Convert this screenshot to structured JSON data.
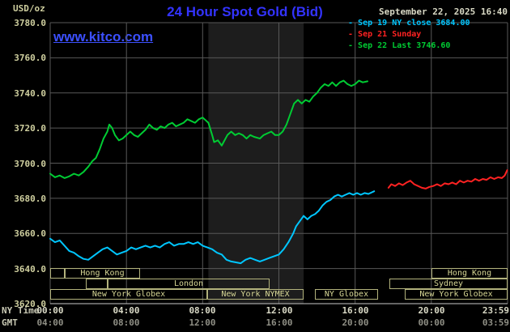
{
  "header": {
    "title": "24 Hour Spot Gold (Bid)",
    "datetime": "September 22, 2025 16:40",
    "units": "USD/oz",
    "watermark": "www.kitco.com"
  },
  "legend": [
    {
      "label": "Sep 19 NY close 3684.00",
      "color": "#00c6ff"
    },
    {
      "label": "Sep 21 Sunday",
      "color": "#ff2222"
    },
    {
      "label": "Sep 22 Last 3746.60",
      "color": "#00cc33"
    }
  ],
  "x_axis_names": {
    "ny": "NY Time",
    "gmt": "GMT"
  },
  "colors": {
    "title_blue": "#3333ff",
    "watermark_blue": "#3c50ff",
    "grid": "#585858",
    "band": "#1d1d1d",
    "axis_line": "#c8c8c8",
    "tick_tan": "#cfcf9f",
    "session_tan": "#b2b27c"
  },
  "chart_data": {
    "type": "line",
    "title": "24 Hour Spot Gold (Bid)",
    "ylabel": "USD/oz",
    "y_axis": {
      "min": 3620,
      "max": 3780,
      "step": 20,
      "tick_labels": [
        "3780.0",
        "3760.0",
        "3740.0",
        "3720.0",
        "3700.0",
        "3680.0",
        "3660.0",
        "3640.0",
        "3620.0"
      ]
    },
    "x_axis": {
      "min_hour": 0,
      "max_hour": 24,
      "grid_hours": [
        0,
        4,
        8,
        12,
        16,
        20,
        24
      ],
      "ticks": [
        {
          "hour": 0,
          "ny": "00:00",
          "gmt": "04:00"
        },
        {
          "hour": 4,
          "ny": "04:00",
          "gmt": "08:00"
        },
        {
          "hour": 8,
          "ny": "08:00",
          "gmt": "12:00"
        },
        {
          "hour": 12,
          "ny": "12:00",
          "gmt": "16:00"
        },
        {
          "hour": 16,
          "ny": "16:00",
          "gmt": "20:00"
        },
        {
          "hour": 20,
          "ny": "20:00",
          "gmt": "00:00"
        },
        {
          "hour": 23.983,
          "ny": "23:59",
          "gmt": "03:59"
        }
      ]
    },
    "highlight_band_hours": [
      8.3,
      13.3
    ],
    "series": [
      {
        "id": "sep19",
        "name": "Sep 19 NY close",
        "close": 3684.0,
        "color": "#00c6ff",
        "points": [
          [
            0,
            3657
          ],
          [
            0.25,
            3655
          ],
          [
            0.5,
            3656
          ],
          [
            0.75,
            3653
          ],
          [
            1,
            3650
          ],
          [
            1.25,
            3649
          ],
          [
            1.5,
            3647
          ],
          [
            1.75,
            3645.5
          ],
          [
            2,
            3645
          ],
          [
            2.25,
            3647
          ],
          [
            2.5,
            3649
          ],
          [
            2.75,
            3651
          ],
          [
            3,
            3652
          ],
          [
            3.25,
            3650
          ],
          [
            3.5,
            3648
          ],
          [
            3.75,
            3649
          ],
          [
            4,
            3650
          ],
          [
            4.25,
            3652
          ],
          [
            4.5,
            3651
          ],
          [
            4.75,
            3652
          ],
          [
            5,
            3653
          ],
          [
            5.25,
            3652
          ],
          [
            5.5,
            3653
          ],
          [
            5.75,
            3652
          ],
          [
            6,
            3654
          ],
          [
            6.25,
            3655
          ],
          [
            6.5,
            3653
          ],
          [
            6.75,
            3654
          ],
          [
            7,
            3654
          ],
          [
            7.25,
            3655
          ],
          [
            7.5,
            3654
          ],
          [
            7.75,
            3655
          ],
          [
            8,
            3653
          ],
          [
            8.25,
            3652
          ],
          [
            8.5,
            3651
          ],
          [
            8.75,
            3649
          ],
          [
            9,
            3648
          ],
          [
            9.25,
            3645
          ],
          [
            9.5,
            3644
          ],
          [
            9.75,
            3643.5
          ],
          [
            10,
            3643
          ],
          [
            10.25,
            3645
          ],
          [
            10.5,
            3646
          ],
          [
            10.75,
            3645
          ],
          [
            11,
            3644
          ],
          [
            11.25,
            3645
          ],
          [
            11.5,
            3646
          ],
          [
            11.75,
            3647
          ],
          [
            12,
            3648
          ],
          [
            12.25,
            3651
          ],
          [
            12.5,
            3655
          ],
          [
            12.75,
            3660
          ],
          [
            12.9,
            3664
          ],
          [
            13.1,
            3667
          ],
          [
            13.3,
            3670
          ],
          [
            13.5,
            3668
          ],
          [
            13.7,
            3670
          ],
          [
            13.9,
            3671
          ],
          [
            14.1,
            3673
          ],
          [
            14.3,
            3676
          ],
          [
            14.5,
            3678
          ],
          [
            14.7,
            3679
          ],
          [
            14.9,
            3681
          ],
          [
            15.1,
            3682
          ],
          [
            15.3,
            3681
          ],
          [
            15.5,
            3682
          ],
          [
            15.7,
            3683
          ],
          [
            15.9,
            3682
          ],
          [
            16.1,
            3683
          ],
          [
            16.3,
            3682
          ],
          [
            16.5,
            3683
          ],
          [
            16.7,
            3682.5
          ],
          [
            17,
            3684
          ]
        ]
      },
      {
        "id": "sep21",
        "name": "Sep 21 Sunday",
        "color": "#ff2222",
        "points": [
          [
            17.75,
            3686
          ],
          [
            17.9,
            3688
          ],
          [
            18.1,
            3687
          ],
          [
            18.3,
            3688.5
          ],
          [
            18.5,
            3687.5
          ],
          [
            18.7,
            3689
          ],
          [
            18.9,
            3690
          ],
          [
            19.1,
            3688
          ],
          [
            19.3,
            3687
          ],
          [
            19.5,
            3686
          ],
          [
            19.7,
            3685.5
          ],
          [
            19.9,
            3686.5
          ],
          [
            20.1,
            3687
          ],
          [
            20.3,
            3688
          ],
          [
            20.5,
            3687
          ],
          [
            20.7,
            3688.5
          ],
          [
            20.9,
            3688
          ],
          [
            21.1,
            3689
          ],
          [
            21.3,
            3688
          ],
          [
            21.5,
            3690
          ],
          [
            21.7,
            3689
          ],
          [
            21.9,
            3690
          ],
          [
            22.1,
            3689.5
          ],
          [
            22.3,
            3691
          ],
          [
            22.5,
            3690
          ],
          [
            22.7,
            3691
          ],
          [
            22.9,
            3690.5
          ],
          [
            23.1,
            3692
          ],
          [
            23.3,
            3691
          ],
          [
            23.5,
            3692
          ],
          [
            23.7,
            3691.5
          ],
          [
            23.85,
            3693
          ],
          [
            23.98,
            3696
          ]
        ]
      },
      {
        "id": "sep22",
        "name": "Sep 22 Last",
        "last": 3746.6,
        "color": "#00cc33",
        "points": [
          [
            0,
            3694
          ],
          [
            0.25,
            3692
          ],
          [
            0.5,
            3693
          ],
          [
            0.75,
            3691.5
          ],
          [
            1,
            3692.5
          ],
          [
            1.25,
            3694
          ],
          [
            1.5,
            3693
          ],
          [
            1.75,
            3695
          ],
          [
            2,
            3698
          ],
          [
            2.2,
            3701
          ],
          [
            2.4,
            3703
          ],
          [
            2.6,
            3708
          ],
          [
            2.8,
            3714
          ],
          [
            3,
            3718
          ],
          [
            3.1,
            3722
          ],
          [
            3.25,
            3720
          ],
          [
            3.4,
            3716
          ],
          [
            3.6,
            3713
          ],
          [
            3.8,
            3714
          ],
          [
            4,
            3716
          ],
          [
            4.2,
            3718
          ],
          [
            4.4,
            3716
          ],
          [
            4.6,
            3715
          ],
          [
            4.8,
            3717
          ],
          [
            5,
            3719
          ],
          [
            5.2,
            3722
          ],
          [
            5.4,
            3720
          ],
          [
            5.6,
            3719
          ],
          [
            5.8,
            3721
          ],
          [
            6,
            3720
          ],
          [
            6.2,
            3722
          ],
          [
            6.4,
            3723
          ],
          [
            6.6,
            3721
          ],
          [
            6.8,
            3722
          ],
          [
            7,
            3723
          ],
          [
            7.2,
            3725
          ],
          [
            7.4,
            3724
          ],
          [
            7.6,
            3723
          ],
          [
            7.8,
            3725
          ],
          [
            8,
            3726
          ],
          [
            8.1,
            3725
          ],
          [
            8.3,
            3723
          ],
          [
            8.5,
            3716
          ],
          [
            8.6,
            3712
          ],
          [
            8.8,
            3713
          ],
          [
            9,
            3710
          ],
          [
            9.1,
            3712
          ],
          [
            9.3,
            3716
          ],
          [
            9.5,
            3718
          ],
          [
            9.7,
            3716
          ],
          [
            9.9,
            3717
          ],
          [
            10.1,
            3716
          ],
          [
            10.3,
            3714
          ],
          [
            10.5,
            3716
          ],
          [
            10.7,
            3715
          ],
          [
            11,
            3714
          ],
          [
            11.2,
            3716
          ],
          [
            11.4,
            3717
          ],
          [
            11.6,
            3718
          ],
          [
            11.8,
            3716
          ],
          [
            12,
            3716
          ],
          [
            12.2,
            3718
          ],
          [
            12.4,
            3722
          ],
          [
            12.6,
            3728
          ],
          [
            12.8,
            3734
          ],
          [
            13,
            3736
          ],
          [
            13.2,
            3734
          ],
          [
            13.4,
            3736
          ],
          [
            13.6,
            3735
          ],
          [
            13.8,
            3738
          ],
          [
            14,
            3740
          ],
          [
            14.2,
            3743
          ],
          [
            14.4,
            3745
          ],
          [
            14.6,
            3744
          ],
          [
            14.8,
            3746
          ],
          [
            15,
            3744
          ],
          [
            15.2,
            3746
          ],
          [
            15.4,
            3747
          ],
          [
            15.6,
            3745
          ],
          [
            15.8,
            3744
          ],
          [
            16,
            3745
          ],
          [
            16.2,
            3747
          ],
          [
            16.4,
            3746
          ],
          [
            16.65,
            3746.6
          ]
        ]
      }
    ]
  },
  "sessions": {
    "rows": [
      {
        "boxes": [
          {
            "start": 0,
            "end": 0.77,
            "label": ""
          },
          {
            "start": 0.77,
            "end": 4.7,
            "label": "Hong Kong"
          },
          {
            "start": 20,
            "end": 24,
            "label": "Hong Kong"
          }
        ]
      },
      {
        "boxes": [
          {
            "start": 1.85,
            "end": 3.0,
            "label": ""
          },
          {
            "start": 3.0,
            "end": 11.5,
            "label": "London"
          },
          {
            "start": 17.8,
            "end": 24,
            "label": "Sydney"
          }
        ]
      },
      {
        "boxes": [
          {
            "start": 0,
            "end": 8.25,
            "label": "New York Globex"
          },
          {
            "start": 8.25,
            "end": 13.3,
            "label": "New York NYMEX"
          },
          {
            "start": 13.9,
            "end": 17.2,
            "label": "NY Globex"
          },
          {
            "start": 18.6,
            "end": 24,
            "label": "New York Globex"
          }
        ]
      }
    ]
  }
}
